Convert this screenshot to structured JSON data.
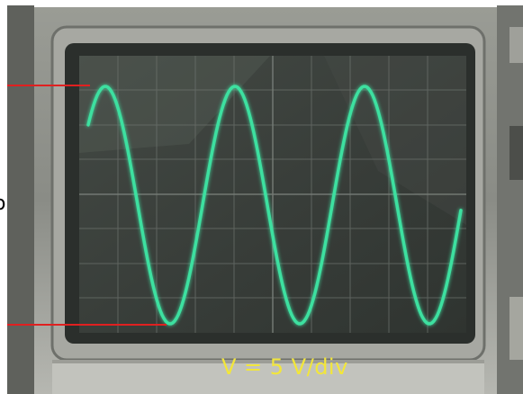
{
  "caption": "V = 5 V/div",
  "colors": {
    "trace": "#3ee0a0",
    "annotation_line": "#e02020",
    "caption": "#f2e63a",
    "screen": "#3a3f3b",
    "bezel": "#8a8c86"
  },
  "scene": {
    "subject": "oscilloscope-screen",
    "trace": "sine-wave",
    "visible_peaks": 3,
    "visible_troughs": 3
  }
}
